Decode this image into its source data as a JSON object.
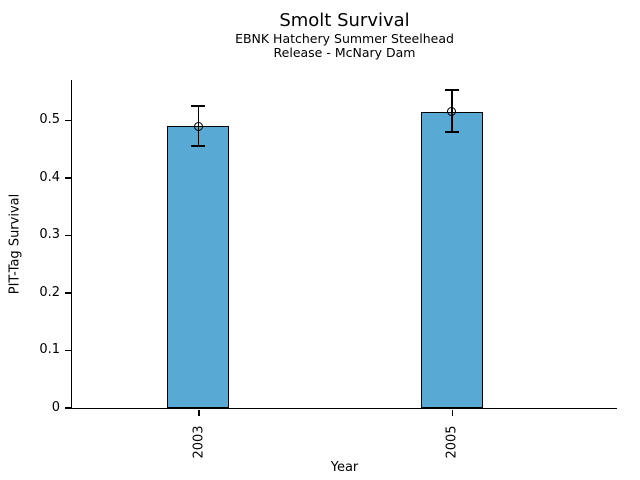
{
  "chart_data": {
    "type": "bar",
    "title": "Smolt Survival",
    "subtitle": [
      "EBNK Hatchery Summer Steelhead",
      "Release - McNary Dam"
    ],
    "categories": [
      "2003",
      "2005"
    ],
    "values": [
      0.49,
      0.515
    ],
    "error_low": [
      0.455,
      0.48
    ],
    "error_high": [
      0.525,
      0.553
    ],
    "xlabel": "Year",
    "ylabel": "PIT-Tag Survival",
    "ylim": [
      0,
      0.57
    ],
    "y_ticks": [
      {
        "value": 0,
        "label": "0"
      },
      {
        "value": 0.1,
        "label": "0.1"
      },
      {
        "value": 0.2,
        "label": "0.2"
      },
      {
        "value": 0.3,
        "label": "0.3"
      },
      {
        "value": 0.4,
        "label": "0.4"
      },
      {
        "value": 0.5,
        "label": "0.5"
      }
    ],
    "grid": false,
    "legend": "none",
    "marker": "open-circle",
    "colors": {
      "bar_fill": "#58A9D4",
      "bar_border": "#000000",
      "error_bar": "#000000",
      "text": "#000000"
    }
  }
}
